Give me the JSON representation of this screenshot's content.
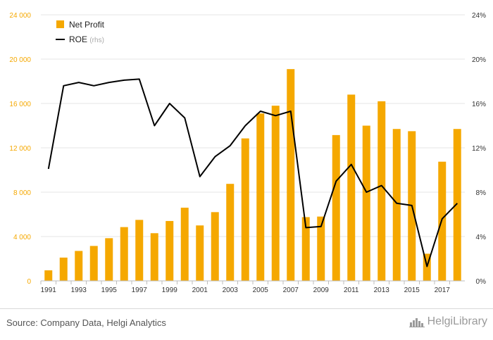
{
  "chart_data": {
    "type": "bar",
    "categories": [
      "1991",
      "1992",
      "1993",
      "1994",
      "1995",
      "1996",
      "1997",
      "1998",
      "1999",
      "2000",
      "2001",
      "2002",
      "2003",
      "2004",
      "2005",
      "2006",
      "2007",
      "2008",
      "2009",
      "2010",
      "2011",
      "2012",
      "2013",
      "2014",
      "2015",
      "2016",
      "2017",
      "2018"
    ],
    "x_tick_labels": [
      "1991",
      "1993",
      "1995",
      "1997",
      "1999",
      "2001",
      "2003",
      "2005",
      "2007",
      "2009",
      "2011",
      "2013",
      "2015",
      "2017"
    ],
    "series": [
      {
        "name": "Net Profit",
        "type": "bar",
        "axis": "left",
        "color": "#f5a800",
        "values": [
          950,
          2100,
          2700,
          3150,
          3850,
          4850,
          5500,
          4300,
          5400,
          6600,
          5000,
          6200,
          8750,
          12850,
          15100,
          15800,
          19100,
          5750,
          5800,
          13150,
          16800,
          14000,
          16200,
          13700,
          13500,
          2450,
          10750,
          13700
        ]
      },
      {
        "name": "ROE",
        "name_suffix": "(rhs)",
        "type": "line",
        "axis": "right",
        "color": "#000000",
        "values": [
          10.1,
          17.6,
          17.9,
          17.6,
          17.9,
          18.1,
          18.2,
          14.0,
          16.0,
          14.7,
          9.4,
          11.2,
          12.2,
          14.0,
          15.3,
          14.9,
          15.3,
          4.8,
          4.9,
          9.0,
          10.5,
          8.0,
          8.6,
          7.0,
          6.8,
          1.3,
          5.6,
          7.0
        ]
      }
    ],
    "ylim_left": [
      0,
      24000
    ],
    "yticks_left": [
      "0",
      "4 000",
      "8 000",
      "12 000",
      "16 000",
      "20 000",
      "24 000"
    ],
    "ylim_right": [
      0,
      24
    ],
    "yticks_right": [
      "0%",
      "4%",
      "8%",
      "12%",
      "16%",
      "20%",
      "24%"
    ],
    "xlabel": "",
    "ylabel": "",
    "grid": true,
    "legend_position": "top-left",
    "colors": {
      "left_axis_text": "#f5a800",
      "grid": "#e6e6e6"
    }
  },
  "footer": {
    "source": "Source: Company Data, Helgi Analytics",
    "brand": "HelgiLibrary"
  }
}
